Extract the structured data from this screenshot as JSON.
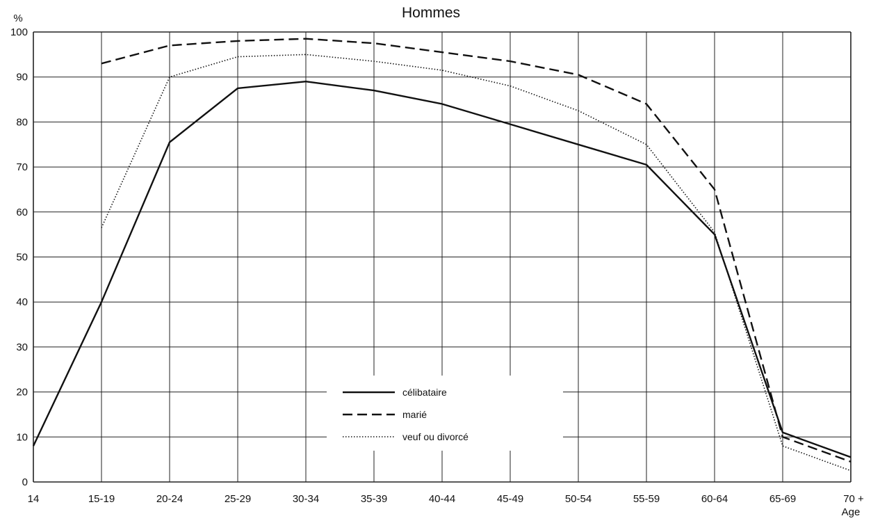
{
  "chart_data": {
    "type": "line",
    "title": "Hommes",
    "ylabel": "%",
    "xlabel": "Age",
    "categories": [
      "14",
      "15-19",
      "20-24",
      "25-29",
      "30-34",
      "35-39",
      "40-44",
      "45-49",
      "50-54",
      "55-59",
      "60-64",
      "65-69",
      "70 +"
    ],
    "ylim": [
      0,
      100
    ],
    "yticks": [
      0,
      10,
      20,
      30,
      40,
      50,
      60,
      70,
      80,
      90,
      100
    ],
    "grid": true,
    "legend_position": "bottom-center",
    "series": [
      {
        "name": "célibataire",
        "style": "solid",
        "values": [
          8,
          40,
          75.5,
          87.5,
          89,
          87,
          84,
          79.5,
          75,
          70.5,
          55,
          11,
          5.5
        ]
      },
      {
        "name": "marié",
        "style": "dashed",
        "values": [
          null,
          93,
          97,
          98,
          98.5,
          97.5,
          95.5,
          93.5,
          90.5,
          84,
          65,
          10,
          4.5
        ]
      },
      {
        "name": "veuf ou divorcé",
        "style": "dotted",
        "values": [
          null,
          56.5,
          90,
          94.5,
          95,
          93.5,
          91.5,
          88,
          82.5,
          75,
          55.5,
          8,
          2.5
        ]
      }
    ]
  }
}
